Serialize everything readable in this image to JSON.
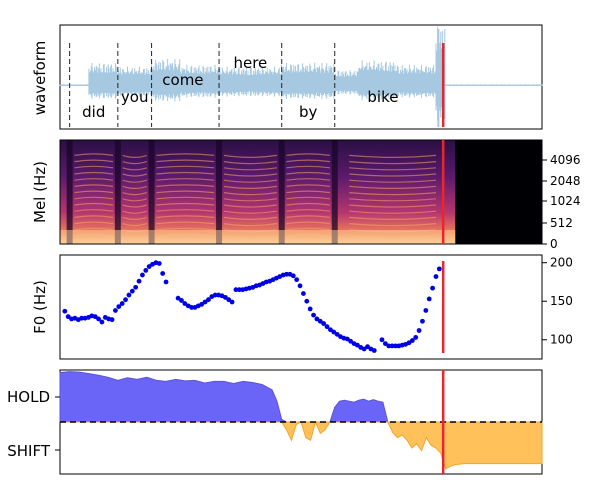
{
  "colors": {
    "waveform": "#a6c8e0",
    "cursor": "#e8272d",
    "f0_points": "#0000e6",
    "hold_fill": "#6a64f7",
    "shift_fill": "#ffc15a",
    "hold_stroke": "#5a55d6",
    "shift_stroke": "#f5a52a"
  },
  "chart_data": [
    {
      "type": "line",
      "name_panel": "waveform",
      "ylabel": "waveform",
      "xlim": [
        0,
        1
      ],
      "ylim": [
        -1,
        1
      ],
      "word_boundaries": [
        0.02,
        0.12,
        0.19,
        0.33,
        0.46,
        0.57
      ],
      "words": [
        {
          "text": "did",
          "x": 0.07,
          "pos": "bottom"
        },
        {
          "text": "you",
          "x": 0.155,
          "pos": "middle"
        },
        {
          "text": "come",
          "x": 0.255,
          "pos": "upper"
        },
        {
          "text": "here",
          "x": 0.395,
          "pos": "top"
        },
        {
          "text": "by",
          "x": 0.515,
          "pos": "bottom"
        },
        {
          "text": "bike",
          "x": 0.67,
          "pos": "middle"
        }
      ],
      "cursor_x": 0.795
    },
    {
      "type": "heatmap",
      "name_panel": "mel",
      "ylabel": "Mel (Hz)",
      "y_ticks": [
        "0",
        "512",
        "1024",
        "2048",
        "4096"
      ],
      "y_axis_side": "right",
      "cursor_x": 0.795
    },
    {
      "type": "scatter",
      "name_panel": "f0",
      "ylabel": "F0 (Hz)",
      "y_axis_side": "right",
      "ylim": [
        75,
        210
      ],
      "y_ticks": [
        100,
        150,
        200
      ],
      "cursor_x": 0.795,
      "points": [
        [
          0.01,
          137
        ],
        [
          0.017,
          130
        ],
        [
          0.024,
          127
        ],
        [
          0.031,
          128
        ],
        [
          0.038,
          126
        ],
        [
          0.045,
          128
        ],
        [
          0.052,
          128
        ],
        [
          0.059,
          129
        ],
        [
          0.066,
          131
        ],
        [
          0.073,
          130
        ],
        [
          0.08,
          127
        ],
        [
          0.087,
          123
        ],
        [
          0.094,
          129
        ],
        [
          0.101,
          127
        ],
        [
          0.108,
          126
        ],
        [
          0.115,
          138
        ],
        [
          0.122,
          143
        ],
        [
          0.129,
          147
        ],
        [
          0.136,
          152
        ],
        [
          0.143,
          158
        ],
        [
          0.15,
          163
        ],
        [
          0.157,
          168
        ],
        [
          0.164,
          176
        ],
        [
          0.171,
          184
        ],
        [
          0.178,
          190
        ],
        [
          0.185,
          195
        ],
        [
          0.192,
          198
        ],
        [
          0.199,
          200
        ],
        [
          0.206,
          199
        ],
        [
          0.213,
          186
        ],
        [
          0.22,
          175
        ],
        [
          0.245,
          154
        ],
        [
          0.252,
          151
        ],
        [
          0.259,
          147
        ],
        [
          0.266,
          144
        ],
        [
          0.273,
          142
        ],
        [
          0.28,
          142
        ],
        [
          0.287,
          144
        ],
        [
          0.294,
          146
        ],
        [
          0.301,
          149
        ],
        [
          0.308,
          152
        ],
        [
          0.315,
          156
        ],
        [
          0.322,
          158
        ],
        [
          0.329,
          158
        ],
        [
          0.336,
          157
        ],
        [
          0.343,
          155
        ],
        [
          0.35,
          152
        ],
        [
          0.357,
          149
        ],
        [
          0.365,
          165
        ],
        [
          0.372,
          165
        ],
        [
          0.379,
          165
        ],
        [
          0.386,
          166
        ],
        [
          0.393,
          167
        ],
        [
          0.4,
          168
        ],
        [
          0.407,
          170
        ],
        [
          0.414,
          171
        ],
        [
          0.421,
          173
        ],
        [
          0.428,
          175
        ],
        [
          0.435,
          176
        ],
        [
          0.442,
          178
        ],
        [
          0.449,
          180
        ],
        [
          0.456,
          182
        ],
        [
          0.463,
          184
        ],
        [
          0.47,
          185
        ],
        [
          0.477,
          185
        ],
        [
          0.484,
          183
        ],
        [
          0.491,
          178
        ],
        [
          0.498,
          170
        ],
        [
          0.505,
          160
        ],
        [
          0.512,
          150
        ],
        [
          0.519,
          140
        ],
        [
          0.526,
          132
        ],
        [
          0.533,
          127
        ],
        [
          0.54,
          124
        ],
        [
          0.547,
          121
        ],
        [
          0.554,
          117
        ],
        [
          0.561,
          113
        ],
        [
          0.568,
          110
        ],
        [
          0.575,
          107
        ],
        [
          0.582,
          104
        ],
        [
          0.589,
          102
        ],
        [
          0.596,
          101
        ],
        [
          0.603,
          98
        ],
        [
          0.61,
          95
        ],
        [
          0.617,
          93
        ],
        [
          0.624,
          90
        ],
        [
          0.631,
          88
        ],
        [
          0.638,
          91
        ],
        [
          0.645,
          88
        ],
        [
          0.652,
          86
        ],
        [
          0.668,
          100
        ],
        [
          0.675,
          95
        ],
        [
          0.682,
          92
        ],
        [
          0.689,
          92
        ],
        [
          0.696,
          92
        ],
        [
          0.703,
          92
        ],
        [
          0.71,
          93
        ],
        [
          0.717,
          94
        ],
        [
          0.724,
          96
        ],
        [
          0.731,
          99
        ],
        [
          0.738,
          103
        ],
        [
          0.745,
          112
        ],
        [
          0.752,
          124
        ],
        [
          0.759,
          138
        ],
        [
          0.766,
          153
        ],
        [
          0.773,
          167
        ],
        [
          0.78,
          182
        ],
        [
          0.787,
          192
        ]
      ]
    },
    {
      "type": "area",
      "name_panel": "turn",
      "y_tick_labels": [
        "HOLD",
        "SHIFT"
      ],
      "ylim": [
        -1,
        1
      ],
      "baseline": 0,
      "cursor_x": 0.795,
      "x": [
        0.0,
        0.02,
        0.04,
        0.06,
        0.08,
        0.1,
        0.12,
        0.14,
        0.16,
        0.18,
        0.2,
        0.22,
        0.24,
        0.26,
        0.28,
        0.3,
        0.32,
        0.34,
        0.36,
        0.38,
        0.4,
        0.42,
        0.44,
        0.45,
        0.46,
        0.47,
        0.48,
        0.49,
        0.5,
        0.51,
        0.52,
        0.53,
        0.54,
        0.55,
        0.56,
        0.57,
        0.58,
        0.59,
        0.6,
        0.61,
        0.62,
        0.63,
        0.64,
        0.65,
        0.66,
        0.67,
        0.68,
        0.69,
        0.7,
        0.71,
        0.72,
        0.73,
        0.74,
        0.75,
        0.76,
        0.77,
        0.78,
        0.79,
        0.8,
        0.81,
        0.82,
        0.84,
        0.86,
        0.88,
        0.9,
        0.92,
        0.94,
        0.96,
        0.98,
        1.0
      ],
      "y": [
        0.95,
        0.97,
        0.96,
        0.93,
        0.9,
        0.86,
        0.8,
        0.85,
        0.82,
        0.86,
        0.8,
        0.78,
        0.82,
        0.79,
        0.8,
        0.75,
        0.78,
        0.78,
        0.74,
        0.78,
        0.76,
        0.72,
        0.62,
        0.4,
        0.05,
        -0.15,
        -0.35,
        -0.05,
        0.0,
        -0.3,
        -0.35,
        0.0,
        -0.22,
        -0.15,
        0.0,
        0.28,
        0.4,
        0.42,
        0.4,
        0.38,
        0.42,
        0.44,
        0.4,
        0.43,
        0.4,
        0.38,
        0.0,
        -0.2,
        -0.3,
        -0.25,
        -0.35,
        -0.5,
        -0.42,
        -0.55,
        -0.3,
        -0.45,
        -0.5,
        -0.6,
        -0.9,
        -0.85,
        -0.82,
        -0.8,
        -0.8,
        -0.8,
        -0.8,
        -0.8,
        -0.8,
        -0.8,
        -0.8,
        -0.8
      ]
    }
  ]
}
